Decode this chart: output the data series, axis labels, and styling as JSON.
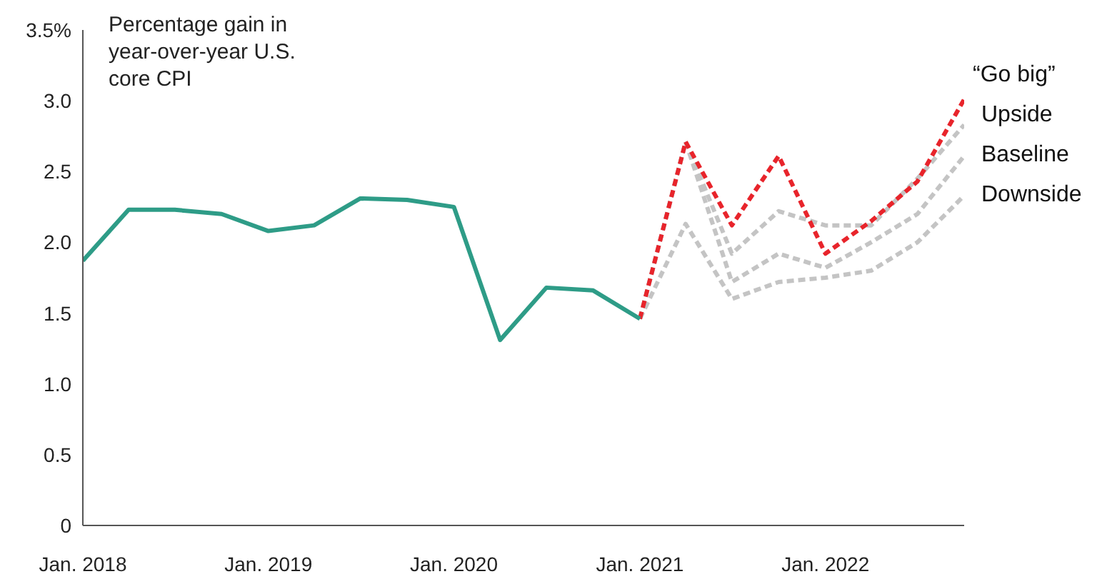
{
  "chart_data": {
    "type": "line",
    "ylabel": "Percentage gain in year-over-year U.S. core CPI",
    "x": [
      "2018-01",
      "2018-04",
      "2018-07",
      "2018-10",
      "2019-01",
      "2019-04",
      "2019-07",
      "2019-10",
      "2020-01",
      "2020-04",
      "2020-07",
      "2020-10",
      "2021-01"
    ],
    "series": [
      {
        "color": "#2e9c87",
        "line_style": "solid",
        "values": [
          1.87,
          2.23,
          2.23,
          2.2,
          2.08,
          2.12,
          2.31,
          2.3,
          2.25,
          1.31,
          1.68,
          1.66,
          1.46
        ]
      },
      {
        "name": "“Go big”",
        "color": "#e8242b",
        "line_style": "dashed",
        "x": [
          "2021-01",
          "2021-04",
          "2021-07",
          "2021-10",
          "2022-01",
          "2022-04",
          "2022-07",
          "2022-10"
        ],
        "values": [
          1.46,
          2.71,
          2.12,
          2.61,
          1.92,
          2.15,
          2.43,
          3.01
        ]
      },
      {
        "name": "Upside",
        "color": "#c4c4c4",
        "line_style": "dashed",
        "x": [
          "2021-01",
          "2021-04",
          "2021-07",
          "2021-10",
          "2022-01",
          "2022-04",
          "2022-07",
          "2022-10"
        ],
        "values": [
          1.46,
          2.71,
          1.92,
          2.22,
          2.12,
          2.12,
          2.45,
          2.83
        ]
      },
      {
        "name": "Baseline",
        "color": "#c4c4c4",
        "line_style": "dashed",
        "x": [
          "2021-01",
          "2021-04",
          "2021-07",
          "2021-10",
          "2022-01",
          "2022-04",
          "2022-07",
          "2022-10"
        ],
        "values": [
          1.46,
          2.71,
          1.72,
          1.92,
          1.82,
          2.0,
          2.2,
          2.61
        ]
      },
      {
        "name": "Downside",
        "color": "#c4c4c4",
        "line_style": "dashed",
        "x": [
          "2021-01",
          "2021-04",
          "2021-07",
          "2021-10",
          "2022-01",
          "2022-04",
          "2022-07",
          "2022-10"
        ],
        "values": [
          1.46,
          2.13,
          1.6,
          1.72,
          1.75,
          1.8,
          2.0,
          2.33
        ]
      }
    ],
    "xlim": [
      "2018-01",
      "2022-10"
    ],
    "xticks": [
      {
        "value": "2018-01",
        "label": "Jan. 2018"
      },
      {
        "value": "2019-01",
        "label": "Jan. 2019"
      },
      {
        "value": "2020-01",
        "label": "Jan. 2020"
      },
      {
        "value": "2021-01",
        "label": "Jan. 2021"
      },
      {
        "value": "2022-01",
        "label": "Jan. 2022"
      }
    ],
    "ylim": [
      0,
      3.5
    ],
    "yticks": [
      0,
      0.5,
      {
        "value": 1,
        "label": "1.0"
      },
      1.5,
      {
        "value": 2,
        "label": "2.0"
      },
      2.5,
      {
        "value": 3,
        "label": "3.0"
      },
      {
        "value": 3.5,
        "label": "3.5%"
      }
    ],
    "grid": false,
    "legend": false,
    "marker": "none"
  }
}
